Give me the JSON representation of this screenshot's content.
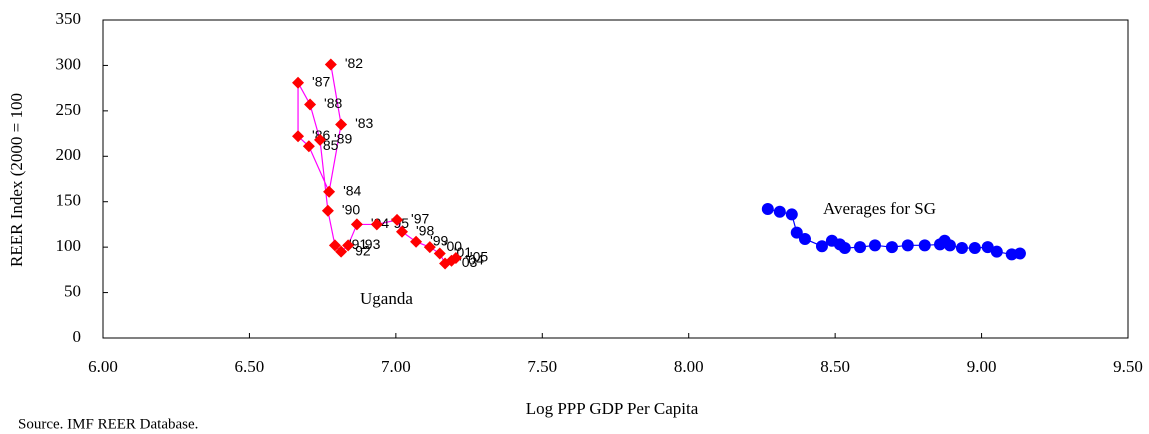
{
  "chart_data": {
    "type": "scatter",
    "x_label": "Log PPP GDP Per Capita",
    "y_label": "REER Index (2000 = 100",
    "source": "Source. IMF REER Database.",
    "xlim": [
      6,
      9.5
    ],
    "xticks": [
      {
        "value": 6,
        "label": "6.00"
      },
      {
        "value": 6.5,
        "label": "6.50"
      },
      {
        "value": 7,
        "label": "7.00"
      },
      {
        "value": 7.5,
        "label": "7.50"
      },
      {
        "value": 8,
        "label": "8.00"
      },
      {
        "value": 8.5,
        "label": "8.50"
      },
      {
        "value": 9,
        "label": "9.00"
      },
      {
        "value": 9.5,
        "label": "9.50"
      }
    ],
    "ylim": [
      0,
      350
    ],
    "yticks": [
      0,
      50,
      100,
      150,
      200,
      250,
      300,
      350
    ],
    "grid": false,
    "series": [
      {
        "name": "Uganda",
        "color": "#ff0000",
        "line_color": "#ff00ff",
        "marker": "diamond",
        "x": [
          6.778,
          6.813,
          6.772,
          6.703,
          6.666,
          6.666,
          6.707,
          6.741,
          6.768,
          6.792,
          6.813,
          6.837,
          6.867,
          6.935,
          7.004,
          7.021,
          7.069,
          7.116,
          7.15,
          7.168,
          7.19,
          7.205
        ],
        "values": [
          301,
          235,
          161,
          211,
          222,
          281,
          257,
          218,
          140,
          102,
          95,
          102,
          125,
          125,
          130,
          117,
          106,
          100,
          93,
          82,
          85,
          88
        ],
        "labels": [
          "'82",
          "'83",
          "'84",
          "85",
          "'86",
          "'87",
          "'88",
          "'89",
          "'90",
          "'91",
          "92",
          "'93",
          "'94",
          "'95",
          "'97",
          "'98",
          "'99",
          "'00",
          "'01",
          "'03",
          "'04",
          "'05"
        ]
      },
      {
        "name": "Averages for SG",
        "color": "#0000ff",
        "line_color": "#0000ff",
        "marker": "circle",
        "x": [
          8.27,
          8.311,
          8.352,
          8.369,
          8.397,
          8.455,
          8.489,
          8.516,
          8.533,
          8.585,
          8.636,
          8.694,
          8.748,
          8.806,
          8.858,
          8.874,
          8.892,
          8.933,
          8.977,
          9.021,
          9.052,
          9.103,
          9.131
        ],
        "values": [
          142,
          139,
          136,
          116,
          109,
          101,
          107,
          103,
          99,
          100,
          102,
          100,
          102,
          102,
          103,
          107,
          102,
          99,
          99,
          100,
          95,
          92,
          93
        ]
      }
    ]
  }
}
